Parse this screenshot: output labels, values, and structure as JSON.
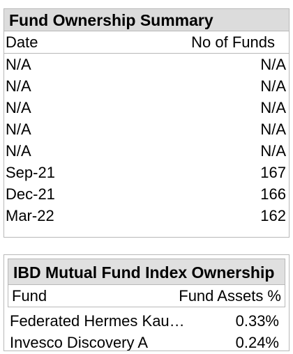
{
  "fund_ownership": {
    "title": "Fund Ownership Summary",
    "columns": {
      "date": "Date",
      "funds": "No of Funds"
    },
    "rows": [
      {
        "date": "N/A",
        "funds": "N/A"
      },
      {
        "date": "N/A",
        "funds": "N/A"
      },
      {
        "date": "N/A",
        "funds": "N/A"
      },
      {
        "date": "N/A",
        "funds": "N/A"
      },
      {
        "date": "N/A",
        "funds": "N/A"
      },
      {
        "date": "Sep-21",
        "funds": "167"
      },
      {
        "date": "Dec-21",
        "funds": "166"
      },
      {
        "date": "Mar-22",
        "funds": "162"
      }
    ]
  },
  "ibd_index": {
    "title": "IBD Mutual Fund Index Ownership",
    "columns": {
      "fund": "Fund",
      "assets": "Fund Assets %"
    },
    "rows": [
      {
        "fund": "Federated Hermes Kau…",
        "assets": "0.33%"
      },
      {
        "fund": "Invesco Discovery A",
        "assets": "0.24%"
      }
    ]
  },
  "colors": {
    "header_bg": "#dcdcdc",
    "border": "#b8b8b8"
  }
}
